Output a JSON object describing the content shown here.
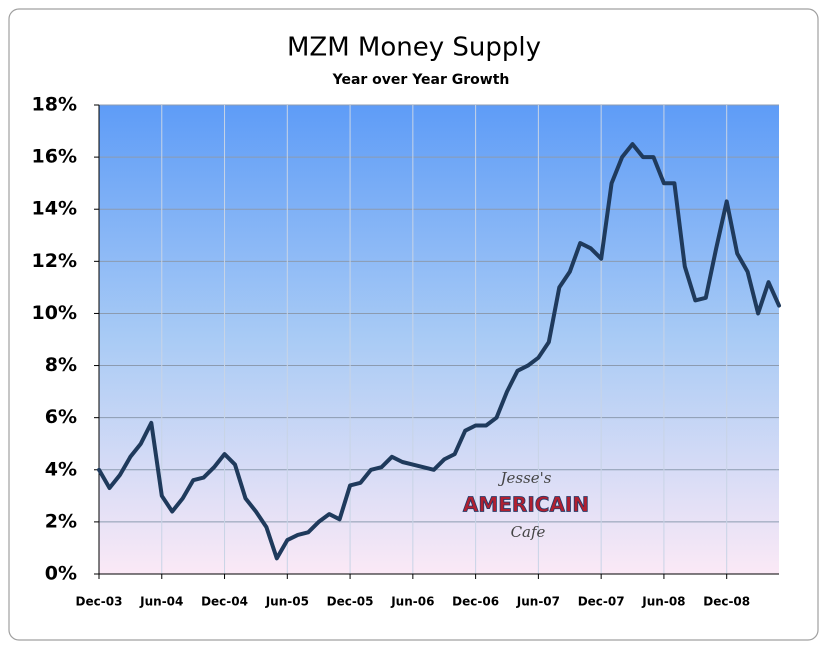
{
  "chart_data": {
    "type": "line",
    "title": "MZM Money Supply",
    "subtitle": "Year over Year Growth",
    "categories": [
      "Dec-03",
      null,
      null,
      null,
      null,
      null,
      "Jun-04",
      null,
      null,
      null,
      null,
      null,
      "Dec-04",
      null,
      null,
      null,
      null,
      null,
      "Jun-05",
      null,
      null,
      null,
      null,
      null,
      "Dec-05",
      null,
      null,
      null,
      null,
      null,
      "Jun-06",
      null,
      null,
      null,
      null,
      null,
      "Dec-06",
      null,
      null,
      null,
      null,
      null,
      "Jun-07",
      null,
      null,
      null,
      null,
      null,
      "Dec-07",
      null,
      null,
      null,
      null,
      null,
      "Jun-08",
      null,
      null,
      null,
      null,
      null,
      "Dec-08",
      null,
      null,
      null,
      null,
      null
    ],
    "series": [
      {
        "name": "MZM",
        "color": "#1f3a5c",
        "values": [
          4.0,
          3.3,
          3.8,
          4.5,
          5.0,
          5.8,
          3.0,
          2.4,
          2.9,
          3.6,
          3.7,
          4.1,
          4.6,
          4.2,
          2.9,
          2.4,
          1.8,
          0.6,
          1.3,
          1.5,
          1.6,
          2.0,
          2.3,
          2.1,
          3.4,
          3.5,
          4.0,
          4.1,
          4.5,
          4.3,
          4.2,
          4.1,
          4.0,
          4.4,
          4.6,
          5.5,
          5.7,
          5.7,
          6.0,
          7.0,
          7.8,
          8.0,
          8.3,
          8.9,
          11.0,
          11.6,
          12.7,
          12.5,
          12.1,
          15.0,
          16.0,
          16.5,
          16.0,
          16.0,
          15.0,
          15.0,
          11.8,
          10.5,
          10.6,
          12.5,
          14.3,
          12.3,
          11.6,
          10.0,
          11.2,
          10.3
        ]
      }
    ],
    "ylim": [
      0,
      18
    ],
    "yticks": [
      {
        "value": 0,
        "label": "0%"
      },
      {
        "value": 2,
        "label": "2%"
      },
      {
        "value": 4,
        "label": "4%"
      },
      {
        "value": 6,
        "label": "6%"
      },
      {
        "value": 8,
        "label": "8%"
      },
      {
        "value": 10,
        "label": "10%"
      },
      {
        "value": 12,
        "label": "12%"
      },
      {
        "value": 14,
        "label": "14%"
      },
      {
        "value": 16,
        "label": "16%"
      },
      {
        "value": 18,
        "label": "18%"
      }
    ],
    "grid": true,
    "watermark": [
      "Jesse's",
      "AMERICAIN",
      "Cafe"
    ]
  }
}
